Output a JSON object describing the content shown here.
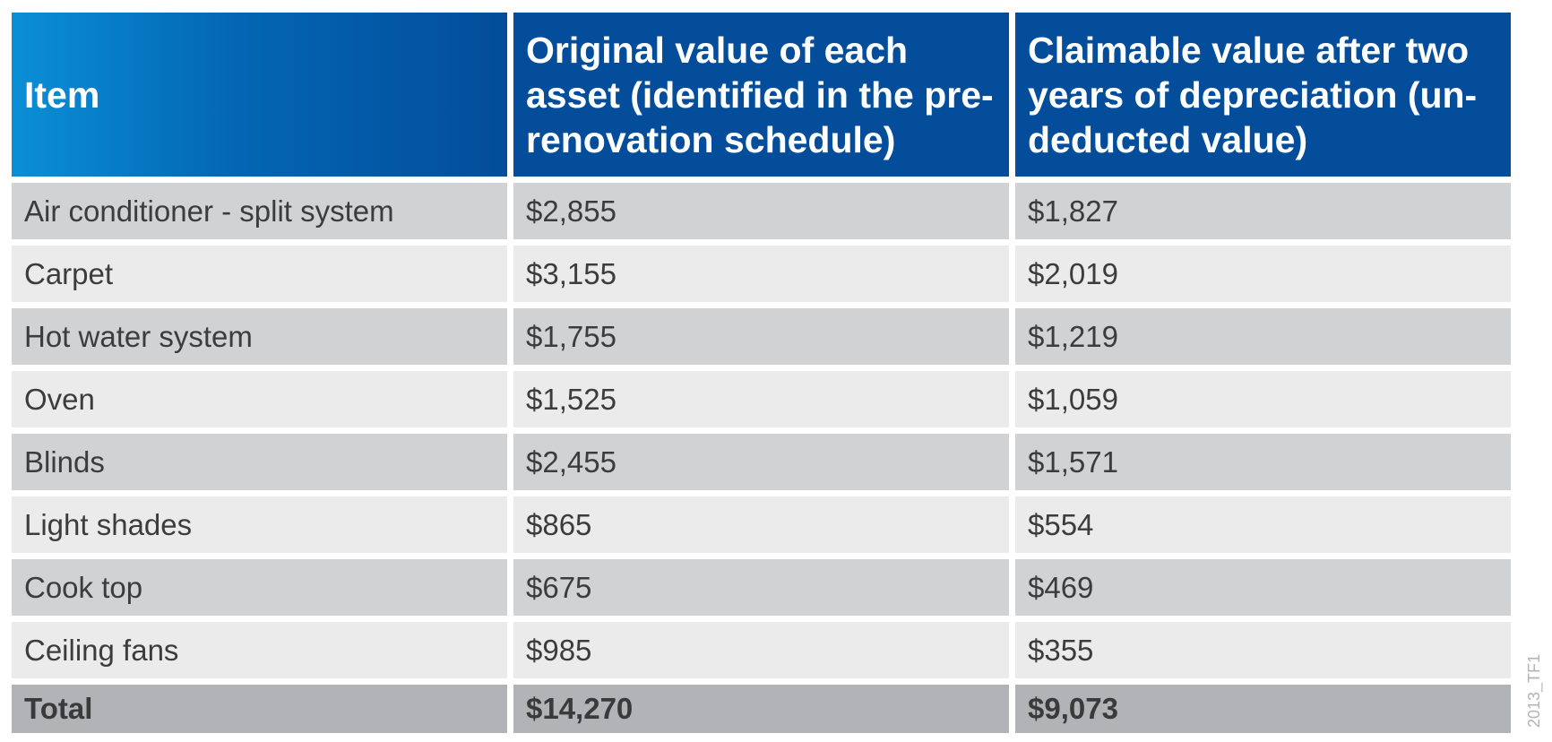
{
  "table": {
    "headers": [
      "Item",
      "Original value of each asset (identified in the pre-renovation schedule)",
      "Claimable value after two years of depreciation (un-deducted value)"
    ],
    "rows": [
      [
        "Air conditioner - split system",
        "$2,855",
        "$1,827"
      ],
      [
        "Carpet",
        "$3,155",
        "$2,019"
      ],
      [
        "Hot water system",
        "$1,755",
        "$1,219"
      ],
      [
        "Oven",
        "$1,525",
        "$1,059"
      ],
      [
        "Blinds",
        "$2,455",
        "$1,571"
      ],
      [
        "Light shades",
        "$865",
        "$554"
      ],
      [
        "Cook top",
        "$675",
        "$469"
      ],
      [
        "Ceiling fans",
        "$985",
        "$355"
      ]
    ],
    "total": [
      "Total",
      "$14,270",
      "$9,073"
    ]
  },
  "watermark": "2013_TF1",
  "colors": {
    "header_blue": "#034d9a",
    "header_gradient_start": "#0a8fd6",
    "row_dark": "#d1d2d4",
    "row_light": "#ebebeb",
    "total_row": "#b2b3b6"
  }
}
